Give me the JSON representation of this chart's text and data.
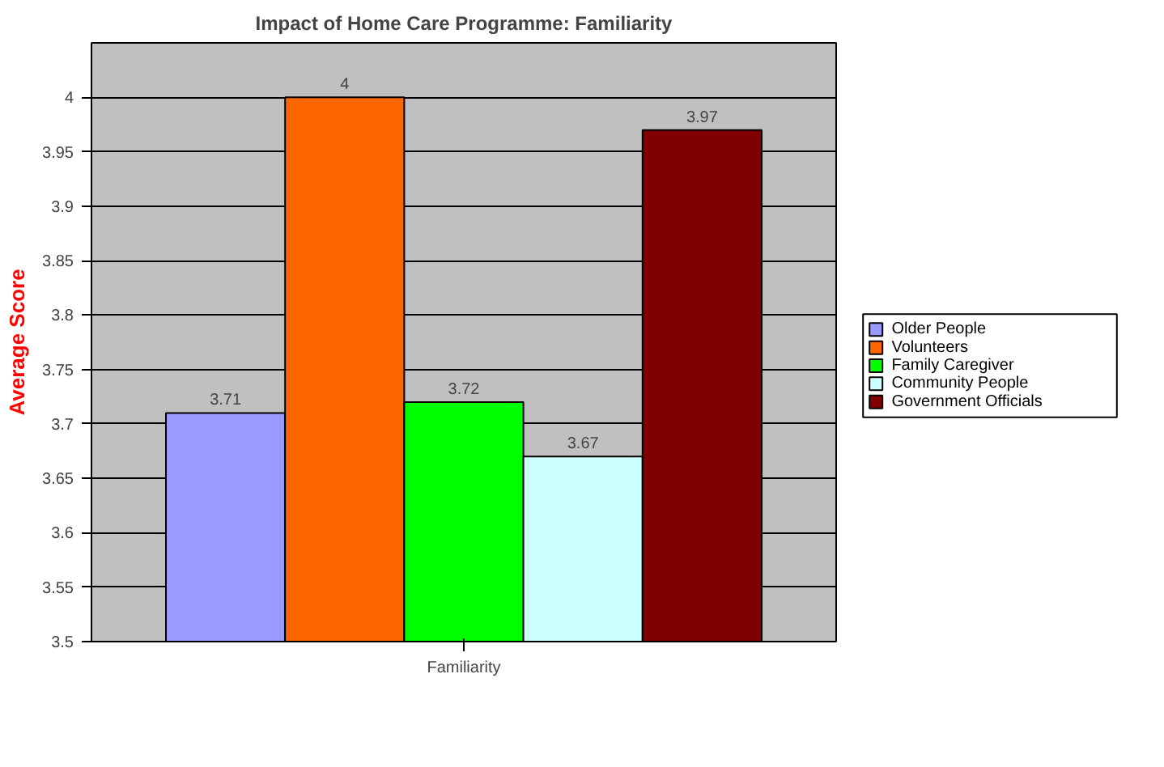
{
  "chart_data": {
    "type": "bar",
    "title": "Impact of Home Care Programme: Familiarity",
    "ylabel": "Average Score",
    "categories": [
      "Familiarity"
    ],
    "series": [
      {
        "name": "Older People",
        "color": "#9999ff",
        "values": [
          3.71
        ]
      },
      {
        "name": "Volunteers",
        "color": "#ff6600",
        "values": [
          4
        ]
      },
      {
        "name": "Family Caregiver",
        "color": "#00ff00",
        "values": [
          3.72
        ]
      },
      {
        "name": "Community People",
        "color": "#ccffff",
        "values": [
          3.67
        ]
      },
      {
        "name": "Government Officials",
        "color": "#800000",
        "values": [
          3.97
        ]
      }
    ],
    "ylim": [
      3.5,
      4.05
    ],
    "yticks": [
      3.5,
      3.55,
      3.6,
      3.65,
      3.7,
      3.75,
      3.8,
      3.85,
      3.9,
      3.95,
      4
    ],
    "grid": "y",
    "legend": "right",
    "data_labels": true
  }
}
